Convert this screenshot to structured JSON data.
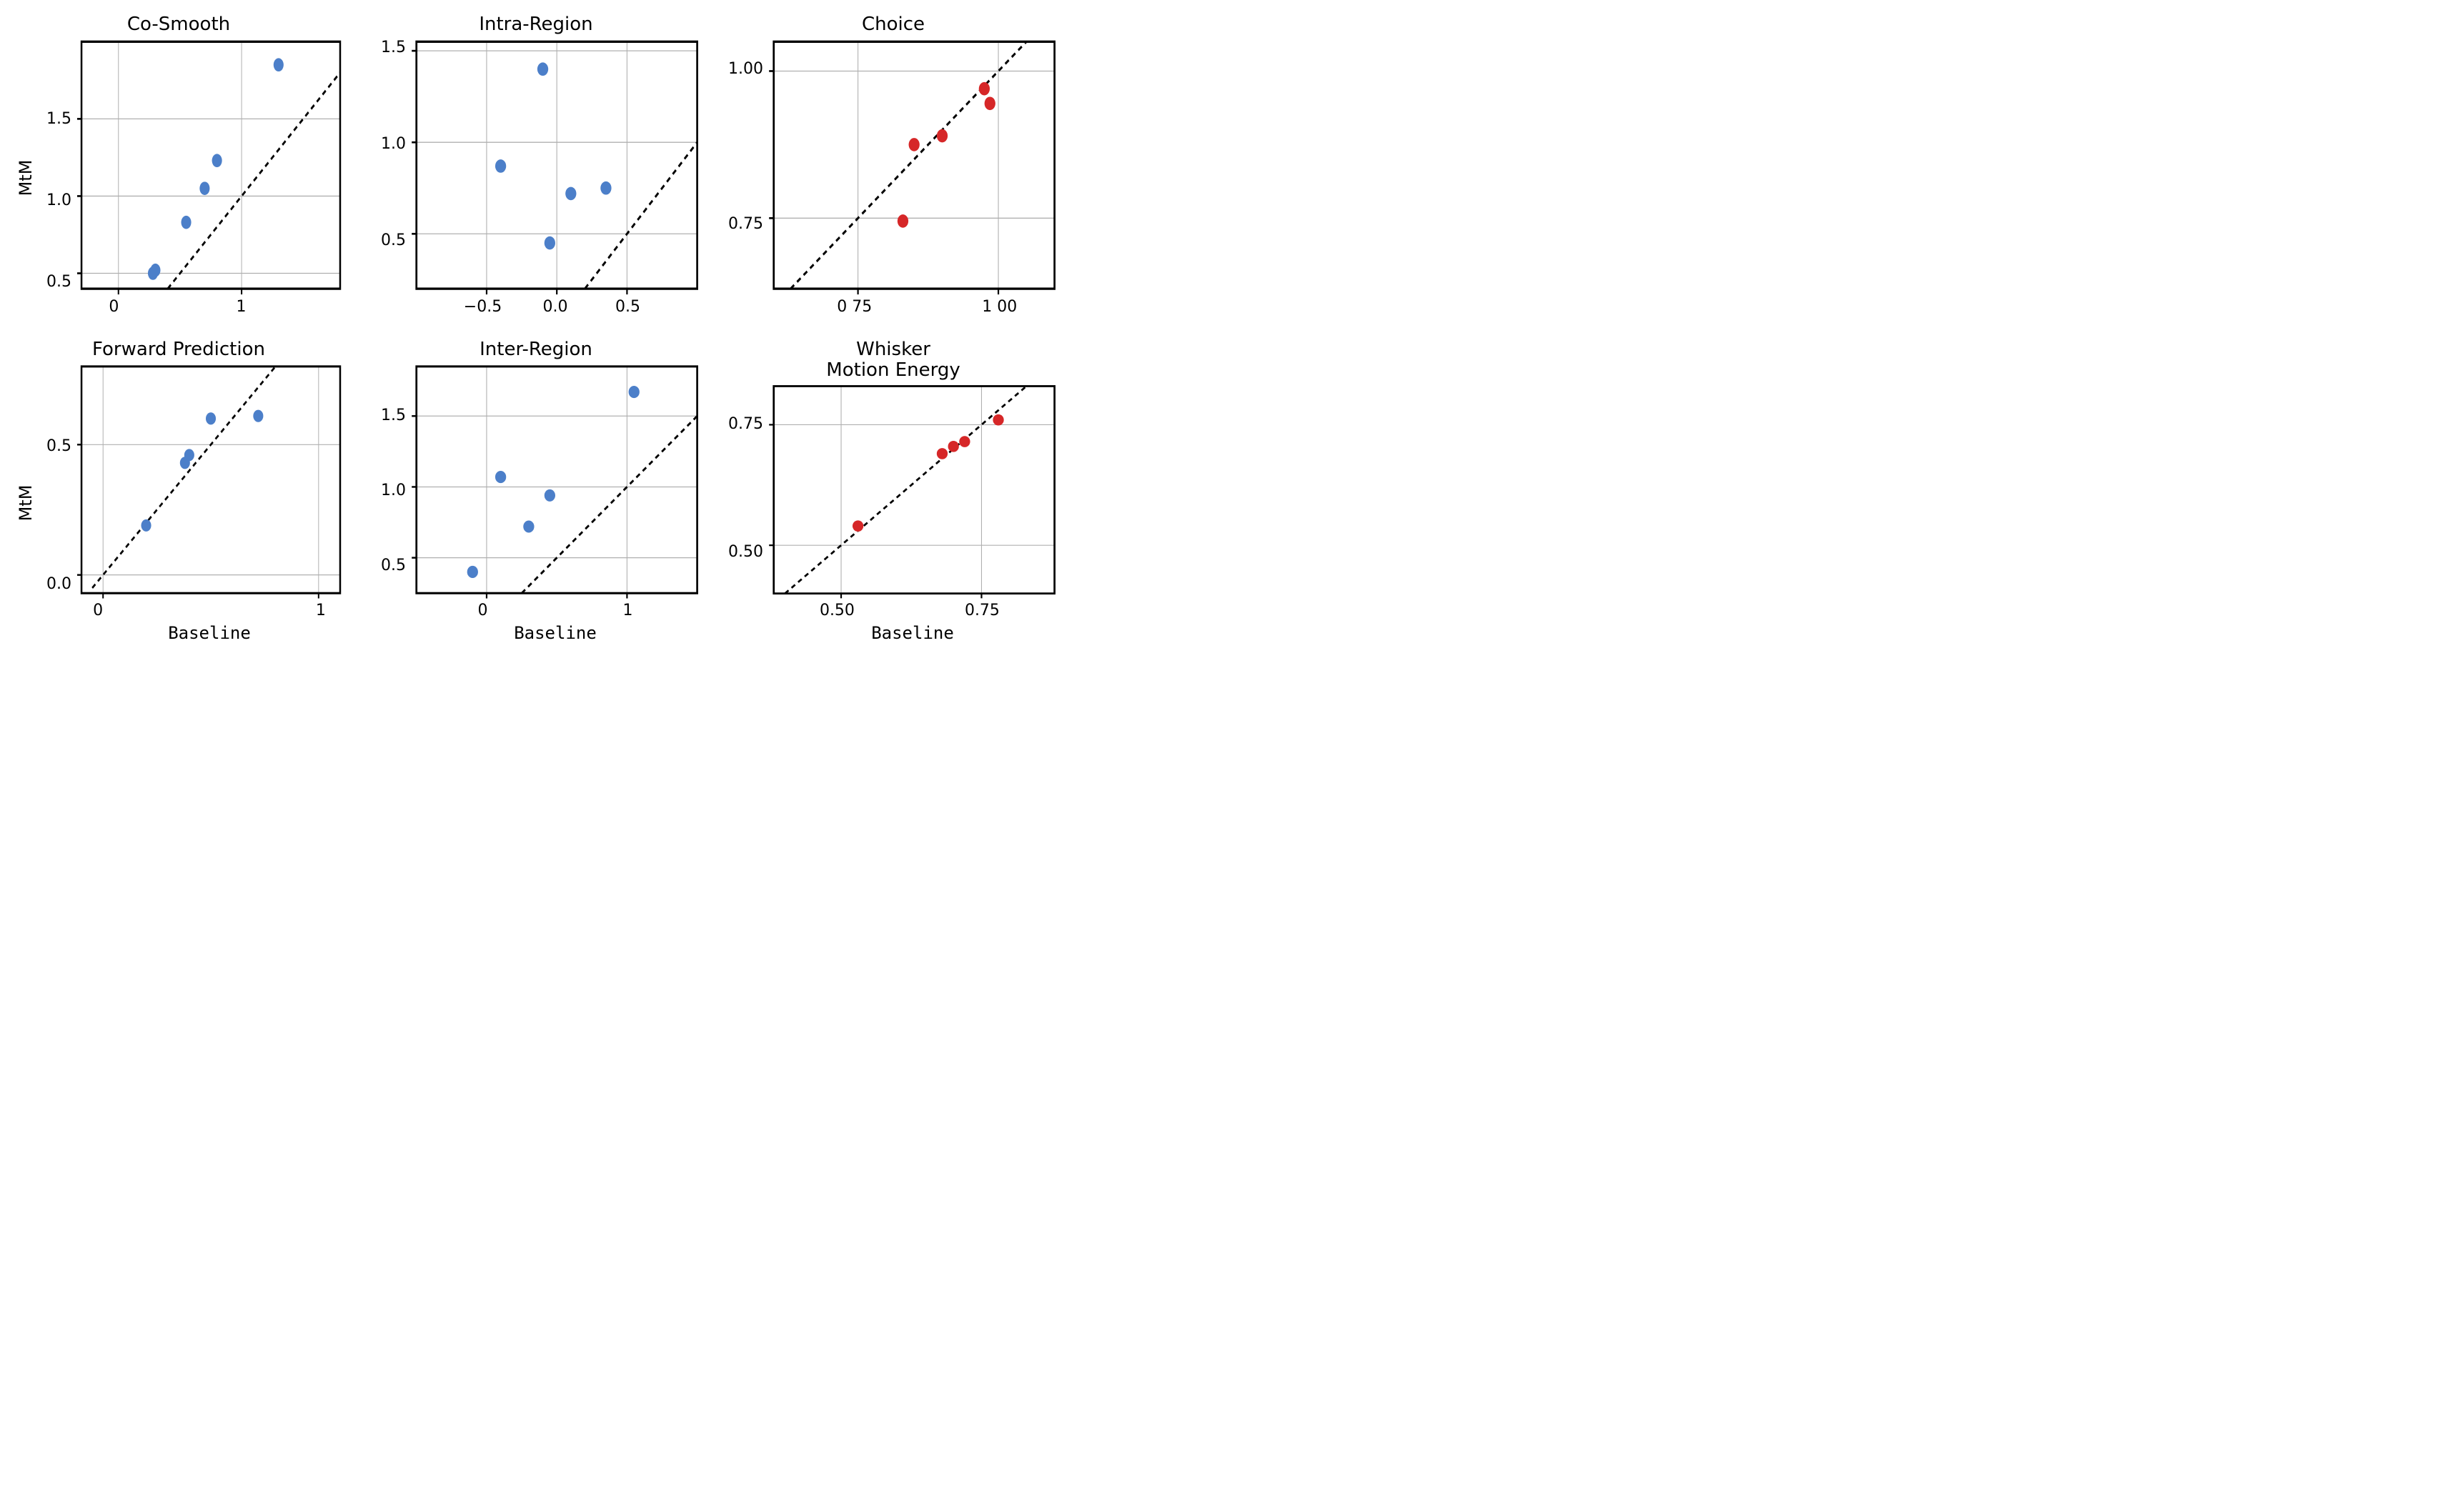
{
  "figure": {
    "background_color": "#ffffff",
    "grid_color": "#b0b0b0",
    "axis_color": "#000000",
    "axis_linewidth": 2.5,
    "diag_color": "#000000",
    "diag_dash": "6,5",
    "diag_linewidth": 2.5,
    "marker_radius": 7,
    "blue": "#4c7fc9",
    "red": "#d62728",
    "title_fontsize": 26,
    "label_fontsize": 24,
    "tick_fontsize": 22,
    "ylabel": "MtM",
    "xlabel": "Baseline"
  },
  "panels": [
    {
      "id": "co_smooth",
      "title": "Co-Smooth",
      "color_key": "blue",
      "show_ylabel": true,
      "show_xlabel": false,
      "xlim": [
        -0.3,
        1.8
      ],
      "ylim": [
        0.4,
        2.0
      ],
      "xticks": [
        0,
        1
      ],
      "yticks": [
        0.5,
        1.0,
        1.5
      ],
      "xtick_labels": [
        "0",
        "1"
      ],
      "ytick_labels": [
        "0.5",
        "1.0",
        "1.5"
      ],
      "points": [
        [
          0.28,
          0.5
        ],
        [
          0.3,
          0.52
        ],
        [
          0.55,
          0.83
        ],
        [
          0.7,
          1.05
        ],
        [
          0.8,
          1.23
        ],
        [
          1.3,
          1.85
        ]
      ],
      "diag": [
        [
          0.4,
          0.4
        ],
        [
          1.8,
          1.8
        ]
      ]
    },
    {
      "id": "intra_region",
      "title": "Intra-Region",
      "color_key": "blue",
      "show_ylabel": false,
      "show_xlabel": false,
      "xlim": [
        -1.0,
        1.0
      ],
      "ylim": [
        0.2,
        1.55
      ],
      "xticks": [
        -0.5,
        0.0,
        0.5
      ],
      "yticks": [
        0.5,
        1.0,
        1.5
      ],
      "xtick_labels": [
        "−0.5",
        "0.0",
        "0.5"
      ],
      "ytick_labels": [
        "0.5",
        "1.0",
        "1.5"
      ],
      "points": [
        [
          -0.4,
          0.87
        ],
        [
          -0.1,
          1.4
        ],
        [
          -0.05,
          0.45
        ],
        [
          0.1,
          0.72
        ],
        [
          0.35,
          0.75
        ]
      ],
      "diag": [
        [
          0.2,
          0.2
        ],
        [
          1.0,
          1.0
        ]
      ]
    },
    {
      "id": "choice",
      "title": "Choice",
      "color_key": "red",
      "show_ylabel": false,
      "show_xlabel": false,
      "xlim": [
        0.6,
        1.1
      ],
      "ylim": [
        0.63,
        1.05
      ],
      "xticks": [
        0.75,
        1.0
      ],
      "yticks": [
        0.75,
        1.0
      ],
      "xtick_labels": [
        "0 75",
        "1 00"
      ],
      "ytick_labels": [
        "0.75",
        "1.00"
      ],
      "points": [
        [
          0.83,
          0.745
        ],
        [
          0.85,
          0.875
        ],
        [
          0.9,
          0.89
        ],
        [
          0.975,
          0.97
        ],
        [
          0.985,
          0.945
        ]
      ],
      "diag": [
        [
          0.63,
          0.63
        ],
        [
          1.05,
          1.05
        ]
      ]
    },
    {
      "id": "forward_prediction",
      "title": "Forward Prediction",
      "color_key": "blue",
      "show_ylabel": true,
      "show_xlabel": true,
      "xlim": [
        -0.1,
        1.1
      ],
      "ylim": [
        -0.07,
        0.8
      ],
      "xticks": [
        0,
        1
      ],
      "yticks": [
        0.0,
        0.5
      ],
      "xtick_labels": [
        "0",
        "1"
      ],
      "ytick_labels": [
        "0.0",
        "0.5"
      ],
      "points": [
        [
          0.2,
          0.19
        ],
        [
          0.38,
          0.43
        ],
        [
          0.4,
          0.46
        ],
        [
          0.5,
          0.6
        ],
        [
          0.72,
          0.61
        ]
      ],
      "diag": [
        [
          -0.05,
          -0.05
        ],
        [
          0.8,
          0.8
        ]
      ]
    },
    {
      "id": "inter_region",
      "title": "Inter-Region",
      "color_key": "blue",
      "show_ylabel": false,
      "show_xlabel": true,
      "xlim": [
        -0.5,
        1.5
      ],
      "ylim": [
        0.25,
        1.85
      ],
      "xticks": [
        0,
        1
      ],
      "yticks": [
        0.5,
        1.0,
        1.5
      ],
      "xtick_labels": [
        "0",
        "1"
      ],
      "ytick_labels": [
        "0.5",
        "1.0",
        "1.5"
      ],
      "points": [
        [
          -0.1,
          0.4
        ],
        [
          0.1,
          1.07
        ],
        [
          0.3,
          0.72
        ],
        [
          0.45,
          0.94
        ],
        [
          1.05,
          1.67
        ]
      ],
      "diag": [
        [
          0.25,
          0.25
        ],
        [
          1.5,
          1.5
        ]
      ]
    },
    {
      "id": "whisker_motion",
      "title": "Whisker\nMotion Energy",
      "color_key": "red",
      "show_ylabel": false,
      "show_xlabel": true,
      "xlim": [
        0.38,
        0.88
      ],
      "ylim": [
        0.4,
        0.83
      ],
      "xticks": [
        0.5,
        0.75
      ],
      "yticks": [
        0.5,
        0.75
      ],
      "xtick_labels": [
        "0.50",
        "0.75"
      ],
      "ytick_labels": [
        "0.50",
        "0.75"
      ],
      "points": [
        [
          0.53,
          0.54
        ],
        [
          0.68,
          0.69
        ],
        [
          0.7,
          0.705
        ],
        [
          0.72,
          0.715
        ],
        [
          0.78,
          0.76
        ]
      ],
      "diag": [
        [
          0.4,
          0.4
        ],
        [
          0.83,
          0.83
        ]
      ]
    }
  ]
}
